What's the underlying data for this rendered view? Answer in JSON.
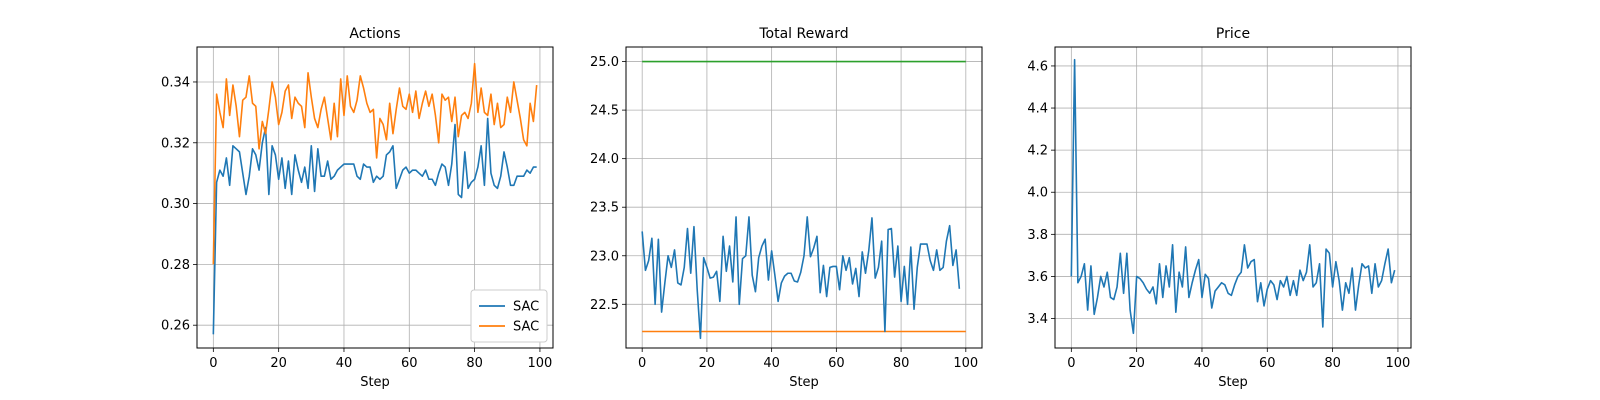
{
  "colors": {
    "blue": "#1f77b4",
    "orange": "#ff7f0e",
    "green": "#2ca02c"
  },
  "chart_data": [
    {
      "type": "line",
      "title": "Actions",
      "xlabel": "Step",
      "ylabel": "",
      "xlim": [
        -5,
        104
      ],
      "ylim": [
        0.2525,
        0.3515
      ],
      "xticks": [
        0,
        20,
        40,
        60,
        80,
        100
      ],
      "yticks": [
        0.26,
        0.28,
        0.3,
        0.32,
        0.34
      ],
      "ytick_labels": [
        "0.26",
        "0.28",
        "0.30",
        "0.32",
        "0.34"
      ],
      "grid": true,
      "legend": "lower-right",
      "series": [
        {
          "name": "SAC",
          "color": "#1f77b4",
          "x_start": 0,
          "values": [
            0.257,
            0.307,
            0.311,
            0.309,
            0.315,
            0.306,
            0.319,
            0.318,
            0.317,
            0.31,
            0.303,
            0.309,
            0.318,
            0.316,
            0.311,
            0.32,
            0.325,
            0.303,
            0.319,
            0.316,
            0.308,
            0.315,
            0.305,
            0.314,
            0.303,
            0.316,
            0.311,
            0.307,
            0.312,
            0.305,
            0.319,
            0.304,
            0.318,
            0.309,
            0.309,
            0.314,
            0.308,
            0.309,
            0.311,
            0.312,
            0.313,
            0.313,
            0.313,
            0.313,
            0.309,
            0.308,
            0.313,
            0.312,
            0.312,
            0.307,
            0.309,
            0.308,
            0.309,
            0.316,
            0.317,
            0.319,
            0.305,
            0.308,
            0.311,
            0.312,
            0.31,
            0.311,
            0.311,
            0.31,
            0.309,
            0.311,
            0.308,
            0.308,
            0.306,
            0.31,
            0.313,
            0.312,
            0.306,
            0.313,
            0.326,
            0.303,
            0.302,
            0.317,
            0.305,
            0.307,
            0.308,
            0.312,
            0.319,
            0.306,
            0.328,
            0.31,
            0.306,
            0.305,
            0.309,
            0.317,
            0.312,
            0.306,
            0.306,
            0.309,
            0.309,
            0.309,
            0.311,
            0.31,
            0.312,
            0.312
          ]
        },
        {
          "name": "SAC",
          "color": "#ff7f0e",
          "x_start": 0,
          "values": [
            0.28,
            0.336,
            0.33,
            0.325,
            0.341,
            0.329,
            0.339,
            0.332,
            0.322,
            0.334,
            0.335,
            0.342,
            0.333,
            0.332,
            0.318,
            0.327,
            0.323,
            0.331,
            0.34,
            0.335,
            0.326,
            0.33,
            0.337,
            0.339,
            0.328,
            0.335,
            0.333,
            0.332,
            0.325,
            0.343,
            0.335,
            0.328,
            0.325,
            0.331,
            0.335,
            0.328,
            0.321,
            0.333,
            0.322,
            0.341,
            0.329,
            0.342,
            0.332,
            0.33,
            0.334,
            0.342,
            0.338,
            0.333,
            0.33,
            0.331,
            0.315,
            0.328,
            0.326,
            0.321,
            0.333,
            0.323,
            0.331,
            0.338,
            0.332,
            0.331,
            0.336,
            0.33,
            0.337,
            0.328,
            0.333,
            0.337,
            0.332,
            0.336,
            0.329,
            0.32,
            0.336,
            0.334,
            0.335,
            0.327,
            0.335,
            0.322,
            0.329,
            0.33,
            0.328,
            0.333,
            0.346,
            0.33,
            0.338,
            0.33,
            0.329,
            0.336,
            0.326,
            0.333,
            0.325,
            0.326,
            0.335,
            0.33,
            0.34,
            0.334,
            0.328,
            0.321,
            0.319,
            0.333,
            0.327,
            0.339
          ]
        }
      ]
    },
    {
      "type": "line",
      "title": "Total Reward",
      "xlabel": "Step",
      "ylabel": "",
      "xlim": [
        -5,
        105
      ],
      "ylim": [
        22.05,
        25.15
      ],
      "xticks": [
        0,
        20,
        40,
        60,
        80,
        100
      ],
      "yticks": [
        22.5,
        23.0,
        23.5,
        24.0,
        24.5,
        25.0
      ],
      "ytick_labels": [
        "22.5",
        "23.0",
        "23.5",
        "24.0",
        "24.5",
        "25.0"
      ],
      "grid": true,
      "series": [
        {
          "color": "#2ca02c",
          "x": [
            0,
            100
          ],
          "values": [
            25.0,
            25.0
          ]
        },
        {
          "color": "#ff7f0e",
          "x": [
            0,
            100
          ],
          "values": [
            22.22,
            22.22
          ]
        },
        {
          "color": "#1f77b4",
          "x_start": 0,
          "values": [
            23.25,
            22.85,
            22.95,
            23.18,
            22.5,
            23.17,
            22.42,
            22.72,
            23.0,
            22.88,
            23.06,
            22.72,
            22.7,
            22.88,
            23.28,
            22.82,
            23.3,
            22.65,
            22.15,
            22.98,
            22.88,
            22.77,
            22.78,
            22.84,
            22.53,
            23.2,
            22.84,
            23.1,
            22.73,
            23.4,
            22.5,
            22.97,
            23.0,
            23.4,
            22.8,
            22.63,
            22.98,
            23.1,
            23.17,
            22.75,
            23.05,
            22.8,
            22.53,
            22.72,
            22.79,
            22.82,
            22.82,
            22.74,
            22.73,
            22.83,
            23.0,
            23.4,
            22.99,
            23.08,
            23.2,
            22.62,
            22.9,
            22.58,
            22.88,
            22.89,
            22.89,
            22.65,
            23.0,
            22.85,
            22.98,
            22.71,
            22.87,
            22.58,
            23.04,
            22.82,
            23.05,
            23.39,
            22.77,
            22.88,
            23.15,
            22.22,
            23.27,
            23.28,
            22.78,
            23.1,
            22.53,
            22.89,
            22.5,
            23.09,
            22.45,
            22.88,
            23.12,
            23.12,
            23.12,
            22.95,
            22.85,
            23.06,
            22.85,
            22.88,
            23.15,
            23.31,
            22.9,
            23.06,
            22.66
          ]
        }
      ]
    },
    {
      "type": "line",
      "title": "Price",
      "xlabel": "Step",
      "ylabel": "",
      "xlim": [
        -5,
        104
      ],
      "ylim": [
        3.26,
        4.69
      ],
      "xticks": [
        0,
        20,
        40,
        60,
        80,
        100
      ],
      "yticks": [
        3.4,
        3.6,
        3.8,
        4.0,
        4.2,
        4.4,
        4.6
      ],
      "ytick_labels": [
        "3.4",
        "3.6",
        "3.8",
        "4.0",
        "4.2",
        "4.4",
        "4.6"
      ],
      "grid": true,
      "series": [
        {
          "color": "#1f77b4",
          "x_start": 0,
          "values": [
            3.6,
            4.63,
            3.57,
            3.6,
            3.66,
            3.44,
            3.65,
            3.42,
            3.5,
            3.6,
            3.55,
            3.62,
            3.5,
            3.49,
            3.55,
            3.71,
            3.52,
            3.71,
            3.44,
            3.33,
            3.6,
            3.59,
            3.57,
            3.54,
            3.52,
            3.55,
            3.47,
            3.66,
            3.5,
            3.65,
            3.55,
            3.75,
            3.43,
            3.62,
            3.55,
            3.74,
            3.5,
            3.57,
            3.63,
            3.68,
            3.5,
            3.61,
            3.59,
            3.45,
            3.53,
            3.55,
            3.57,
            3.56,
            3.52,
            3.51,
            3.56,
            3.6,
            3.62,
            3.75,
            3.64,
            3.67,
            3.68,
            3.48,
            3.57,
            3.46,
            3.54,
            3.58,
            3.56,
            3.49,
            3.58,
            3.55,
            3.6,
            3.51,
            3.58,
            3.51,
            3.63,
            3.58,
            3.62,
            3.75,
            3.55,
            3.57,
            3.66,
            3.36,
            3.73,
            3.71,
            3.55,
            3.67,
            3.58,
            3.44,
            3.57,
            3.52,
            3.64,
            3.44,
            3.56,
            3.66,
            3.64,
            3.65,
            3.52,
            3.66,
            3.55,
            3.58,
            3.66,
            3.73,
            3.57,
            3.63
          ]
        }
      ]
    }
  ]
}
